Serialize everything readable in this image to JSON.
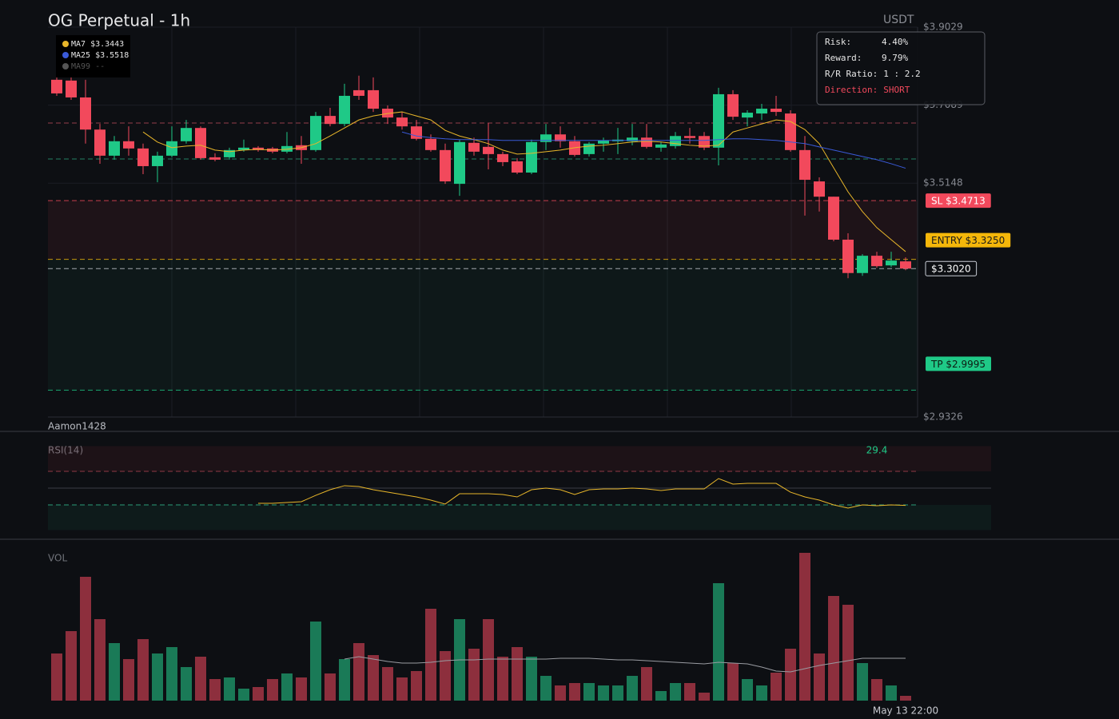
{
  "header": {
    "title": "OG Perpetual - 1h",
    "currency": "USDT",
    "watermark": "Aamon1428"
  },
  "chart_data": {
    "type": "candlestick",
    "categories": [
      null,
      null,
      null,
      null,
      null,
      null,
      null,
      null,
      null,
      null,
      null,
      null,
      null,
      null,
      null,
      null,
      null,
      null,
      null,
      null,
      null,
      null,
      null,
      null,
      null,
      null,
      null,
      null,
      null,
      null,
      null,
      null,
      null,
      null,
      null,
      null,
      null,
      null,
      null,
      null,
      null,
      null,
      null,
      null,
      null,
      null,
      null,
      null,
      null,
      null,
      null,
      null,
      null,
      null,
      null,
      null,
      null,
      null,
      null,
      "May 13 22:00"
    ],
    "open": [
      3.772,
      3.77,
      3.728,
      3.648,
      3.583,
      3.619,
      3.601,
      3.557,
      3.583,
      3.619,
      3.652,
      3.579,
      3.579,
      3.597,
      3.603,
      3.601,
      3.593,
      3.609,
      3.597,
      3.682,
      3.662,
      3.746,
      3.746,
      3.7,
      3.678,
      3.656,
      3.625,
      3.597,
      3.513,
      3.615,
      3.605,
      3.587,
      3.569,
      3.541,
      3.617,
      3.636,
      3.619,
      3.587,
      3.613,
      3.619,
      3.619,
      3.628,
      3.603,
      3.607,
      3.632,
      3.632,
      3.603,
      3.736,
      3.678,
      3.688,
      3.7,
      3.688,
      3.597,
      3.519,
      3.481,
      3.374,
      3.291,
      3.334,
      3.31,
      3.32
    ],
    "high": [
      3.811,
      3.782,
      3.772,
      3.662,
      3.632,
      3.656,
      3.613,
      3.593,
      3.656,
      3.672,
      3.656,
      3.589,
      3.603,
      3.623,
      3.607,
      3.605,
      3.642,
      3.632,
      3.692,
      3.702,
      3.762,
      3.782,
      3.778,
      3.708,
      3.692,
      3.672,
      3.636,
      3.613,
      3.623,
      3.628,
      3.664,
      3.593,
      3.577,
      3.623,
      3.662,
      3.656,
      3.632,
      3.617,
      3.628,
      3.652,
      3.662,
      3.662,
      3.617,
      3.642,
      3.652,
      3.642,
      3.752,
      3.746,
      3.696,
      3.712,
      3.732,
      3.696,
      3.632,
      3.529,
      3.481,
      3.39,
      3.338,
      3.344,
      3.344,
      3.33
    ],
    "low": [
      3.732,
      3.722,
      3.613,
      3.563,
      3.573,
      3.583,
      3.537,
      3.517,
      3.579,
      3.613,
      3.573,
      3.569,
      3.573,
      3.593,
      3.593,
      3.589,
      3.589,
      3.563,
      3.593,
      3.656,
      3.656,
      3.722,
      3.692,
      3.662,
      3.648,
      3.621,
      3.593,
      3.513,
      3.483,
      3.583,
      3.549,
      3.557,
      3.537,
      3.537,
      3.597,
      3.603,
      3.581,
      3.581,
      3.593,
      3.587,
      3.609,
      3.601,
      3.593,
      3.601,
      3.613,
      3.597,
      3.559,
      3.672,
      3.656,
      3.672,
      3.682,
      3.593,
      3.434,
      3.444,
      3.37,
      3.278,
      3.284,
      3.304,
      3.306,
      3.298
    ],
    "close": [
      3.738,
      3.728,
      3.648,
      3.583,
      3.619,
      3.601,
      3.557,
      3.583,
      3.619,
      3.652,
      3.577,
      3.573,
      3.597,
      3.603,
      3.597,
      3.593,
      3.607,
      3.597,
      3.682,
      3.662,
      3.732,
      3.732,
      3.7,
      3.678,
      3.656,
      3.625,
      3.597,
      3.519,
      3.617,
      3.593,
      3.587,
      3.567,
      3.541,
      3.617,
      3.636,
      3.619,
      3.585,
      3.613,
      3.621,
      3.623,
      3.628,
      3.605,
      3.611,
      3.632,
      3.627,
      3.603,
      3.736,
      3.68,
      3.69,
      3.7,
      3.692,
      3.597,
      3.523,
      3.481,
      3.374,
      3.291,
      3.334,
      3.308,
      3.322,
      3.302
    ],
    "up_color": "#1fc987",
    "down_color": "#f2495c",
    "ylim": [
      2.9326,
      3.9029
    ],
    "yticks": [
      {
        "value": 3.9029,
        "label": "$3.9029"
      },
      {
        "value": 3.7089,
        "label": "$3.7089"
      },
      {
        "value": 3.5148,
        "label": "$3.5148"
      },
      {
        "value": 2.9326,
        "label": "$2.9326"
      }
    ],
    "grid": true,
    "series": [
      {
        "name": "MA7",
        "color": "#e8b62a",
        "value_label": "$3.3443",
        "values": [
          null,
          null,
          null,
          null,
          null,
          null,
          3.642,
          3.617,
          3.603,
          3.607,
          3.609,
          3.597,
          3.593,
          3.597,
          3.599,
          3.597,
          3.599,
          3.603,
          3.613,
          3.632,
          3.652,
          3.672,
          3.682,
          3.688,
          3.692,
          3.682,
          3.672,
          3.646,
          3.632,
          3.623,
          3.613,
          3.597,
          3.587,
          3.589,
          3.593,
          3.597,
          3.603,
          3.607,
          3.609,
          3.613,
          3.617,
          3.619,
          3.617,
          3.613,
          3.609,
          3.607,
          3.609,
          3.642,
          3.652,
          3.662,
          3.672,
          3.668,
          3.648,
          3.613,
          3.553,
          3.493,
          3.444,
          3.404,
          3.374,
          3.3443
        ]
      },
      {
        "name": "MA25",
        "color": "#3a5ad8",
        "value_label": "$3.5518",
        "values": [
          null,
          null,
          null,
          null,
          null,
          null,
          null,
          null,
          null,
          null,
          null,
          null,
          null,
          null,
          null,
          null,
          null,
          null,
          null,
          null,
          null,
          null,
          null,
          null,
          3.642,
          3.632,
          3.628,
          3.625,
          3.623,
          3.623,
          3.623,
          3.621,
          3.621,
          3.621,
          3.621,
          3.621,
          3.621,
          3.621,
          3.621,
          3.621,
          3.621,
          3.621,
          3.621,
          3.621,
          3.621,
          3.621,
          3.623,
          3.625,
          3.625,
          3.623,
          3.621,
          3.617,
          3.613,
          3.605,
          3.597,
          3.589,
          3.581,
          3.573,
          3.563,
          3.5518
        ]
      },
      {
        "name": "MA99",
        "color": "#555555",
        "value_label": "--"
      }
    ],
    "levels": [
      {
        "label": "SL $3.4713",
        "value": 3.4713,
        "color": "#f2495c"
      },
      {
        "label": "ENTRY $3.3250",
        "value": 3.325,
        "color": "#f5b70a"
      },
      {
        "label": "$3.3020",
        "value": 3.302,
        "color": "#c8ccd4"
      },
      {
        "label": "TP $2.9995",
        "value": 2.9995,
        "color": "#1fc987"
      },
      {
        "value": 3.6643,
        "color": "#b8485a"
      },
      {
        "value": 3.5749,
        "color": "#2a9d78"
      }
    ],
    "trade_info": [
      [
        "Risk:",
        "4.40%"
      ],
      [
        "Reward:",
        "9.79%"
      ],
      [
        "R/R Ratio:",
        "1 : 2.2"
      ],
      [
        "Direction:",
        "SHORT"
      ]
    ],
    "volume": {
      "title": "VOL",
      "ylim": [
        0,
        190
      ],
      "values": [
        59,
        87,
        155,
        102,
        72,
        52,
        77,
        59,
        67,
        42,
        55,
        27,
        29,
        15,
        17,
        27,
        34,
        29,
        99,
        34,
        52,
        72,
        57,
        42,
        29,
        37,
        115,
        62,
        102,
        65,
        102,
        55,
        67,
        55,
        31,
        19,
        22,
        22,
        19,
        19,
        31,
        42,
        12,
        22,
        22,
        10,
        147,
        47,
        27,
        19,
        35,
        65,
        185,
        59,
        131,
        120,
        47,
        27,
        19,
        6
      ],
      "ma": [
        null,
        null,
        null,
        null,
        null,
        null,
        null,
        null,
        null,
        null,
        null,
        null,
        null,
        null,
        null,
        null,
        null,
        null,
        null,
        null,
        52,
        55,
        52,
        49,
        47,
        47,
        48,
        50,
        51,
        51,
        52,
        52,
        52,
        52,
        52,
        53,
        53,
        53,
        52,
        51,
        51,
        50,
        49,
        48,
        47,
        46,
        48,
        47,
        46,
        42,
        37,
        36,
        40,
        44,
        47,
        50,
        53,
        53,
        53,
        53
      ]
    },
    "rsi": {
      "title": "RSI(14)",
      "ylim": [
        0,
        100
      ],
      "levels": [
        70,
        50,
        30
      ],
      "values": [
        null,
        null,
        null,
        null,
        null,
        null,
        null,
        null,
        null,
        null,
        null,
        null,
        null,
        null,
        31.9,
        31.9,
        32.9,
        33.8,
        41.4,
        48.1,
        52.9,
        51.9,
        48.1,
        45.2,
        42.4,
        39.5,
        35.7,
        31.0,
        43.3,
        43.3,
        43.3,
        42.4,
        39.5,
        48.1,
        50.0,
        48.1,
        42.4,
        48.1,
        49.0,
        49.0,
        50.0,
        49.0,
        47.1,
        49.0,
        49.0,
        49.0,
        61.4,
        54.8,
        55.7,
        55.7,
        55.7,
        45.2,
        39.5,
        35.7,
        30.0,
        26.2,
        30.0,
        29.0,
        30.0,
        29.4
      ]
    }
  }
}
